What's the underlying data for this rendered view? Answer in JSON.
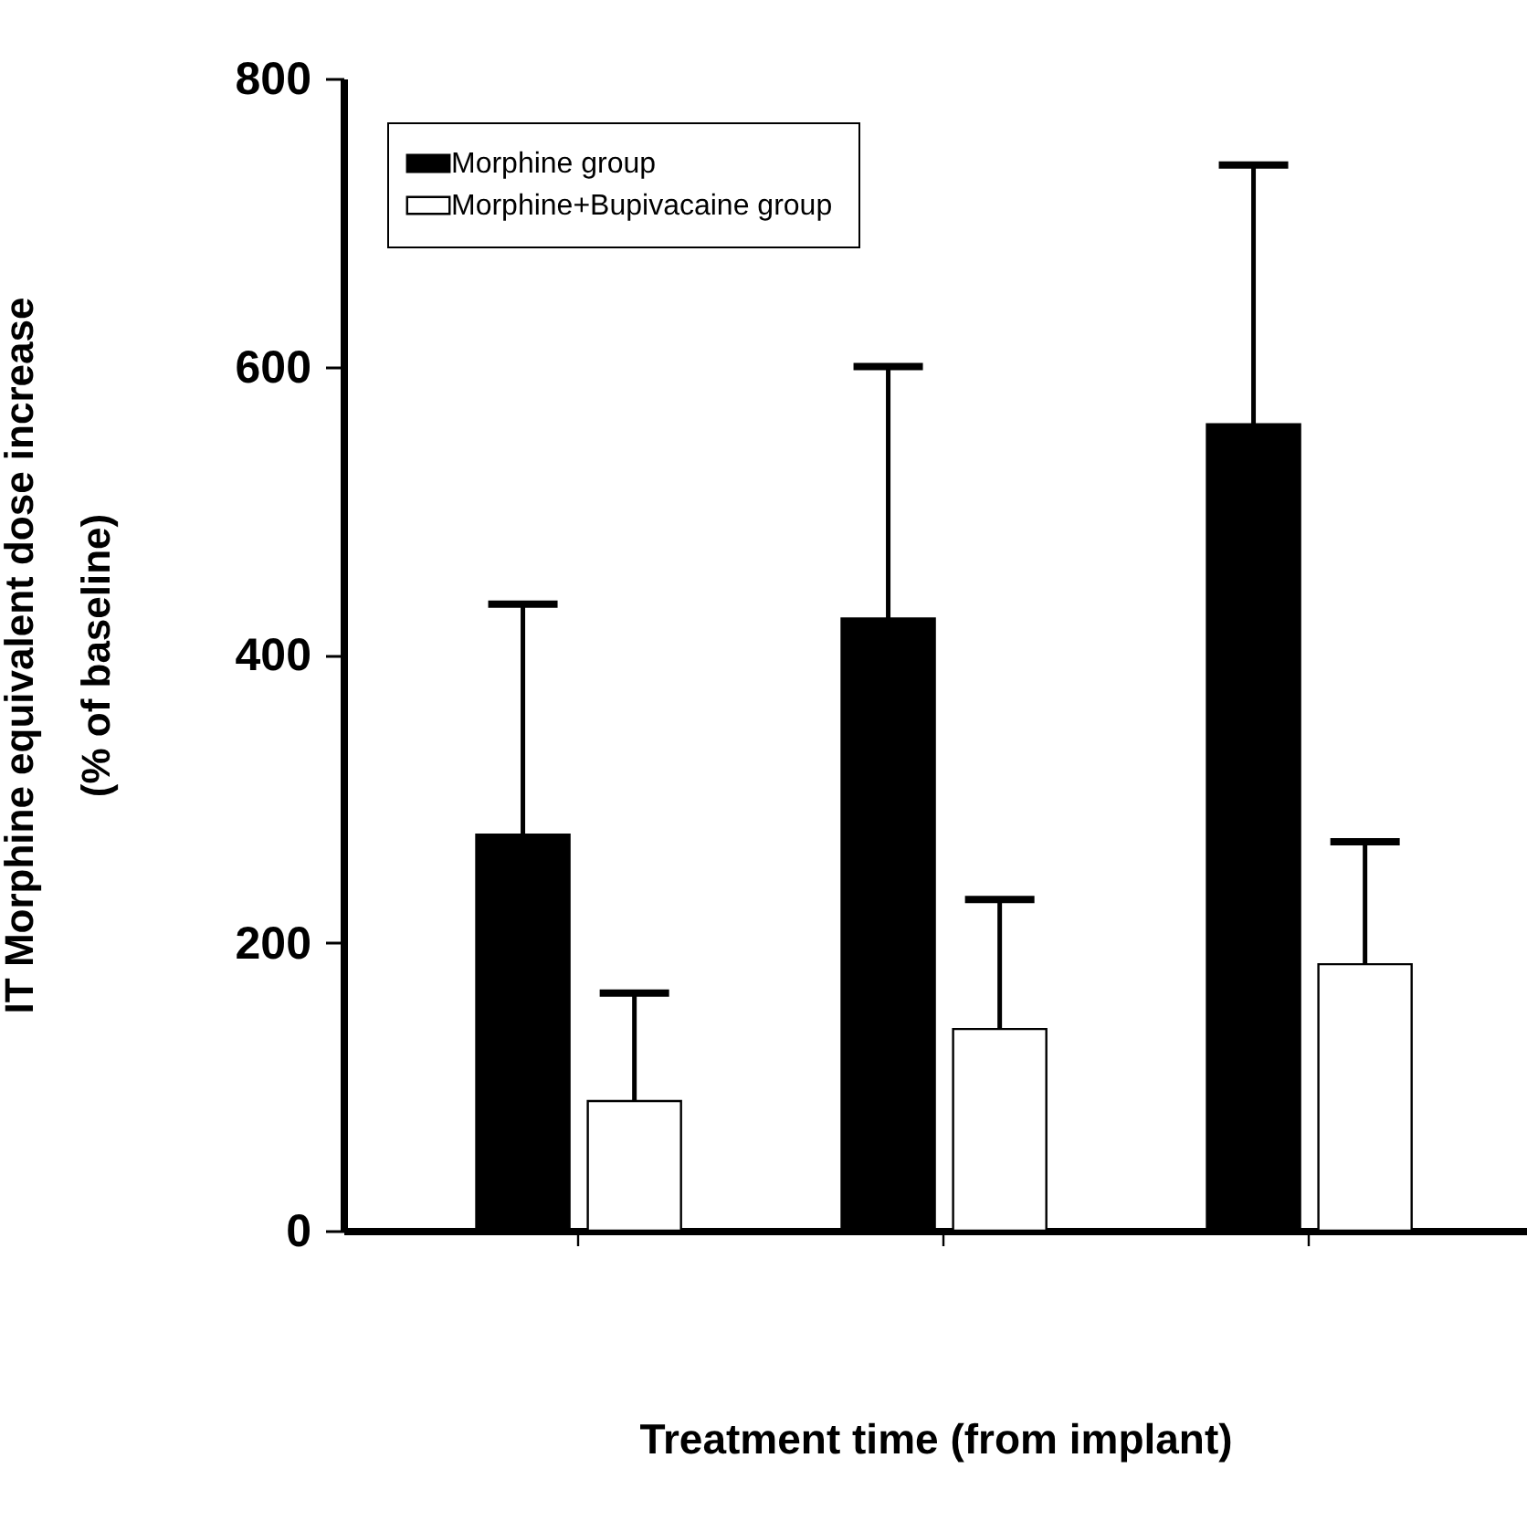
{
  "chart_data": {
    "type": "bar",
    "xlabel": "Treatment time (from implant)",
    "ylabel": "IT Morphine equivalent dose increase\n(% of baseline)",
    "categories": [
      null,
      null,
      null
    ],
    "series": [
      {
        "name": "Morphine group",
        "color": "#000000",
        "values": [
          275,
          425,
          560
        ],
        "errors": [
          [
            275,
            435
          ],
          [
            425,
            600
          ],
          [
            560,
            740
          ]
        ]
      },
      {
        "name": "Morphine+Bupivacaine group",
        "color": "#ffffff",
        "values": [
          90,
          140,
          185
        ],
        "errors": [
          [
            90,
            165
          ],
          [
            140,
            230
          ],
          [
            185,
            270
          ]
        ]
      }
    ],
    "ylim": [
      0,
      800
    ],
    "yticks": [
      0,
      200,
      400,
      600,
      800
    ],
    "tick_labels": "y",
    "legend": "top left"
  }
}
